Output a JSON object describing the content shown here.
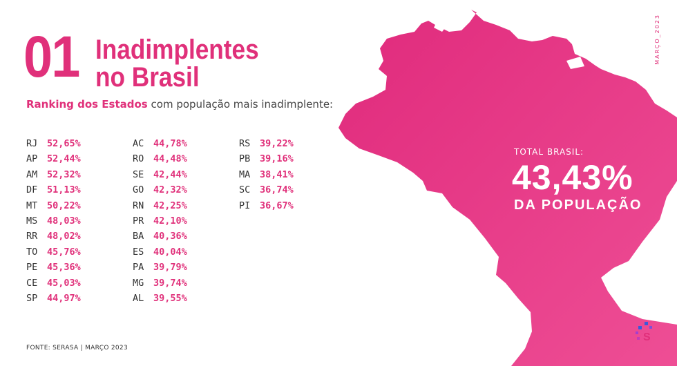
{
  "header": {
    "number": "01",
    "title_line1": "Inadimplentes",
    "title_line2": "no Brasil",
    "subtitle_bold": "Ranking dos Estados",
    "subtitle_rest": " com população mais inadimplente:",
    "date_vertical": "MARÇO_2023"
  },
  "ranking": {
    "col1": [
      {
        "state": "RJ",
        "pct": "52,65%"
      },
      {
        "state": "AP",
        "pct": "52,44%"
      },
      {
        "state": "AM",
        "pct": "52,32%"
      },
      {
        "state": "DF",
        "pct": "51,13%"
      },
      {
        "state": "MT",
        "pct": "50,22%"
      },
      {
        "state": "MS",
        "pct": "48,03%"
      },
      {
        "state": "RR",
        "pct": "48,02%"
      },
      {
        "state": "TO",
        "pct": "45,76%"
      },
      {
        "state": "PE",
        "pct": "45,36%"
      },
      {
        "state": "CE",
        "pct": "45,03%"
      },
      {
        "state": "SP",
        "pct": "44,97%"
      }
    ],
    "col2": [
      {
        "state": "AC",
        "pct": "44,78%"
      },
      {
        "state": "RO",
        "pct": "44,48%"
      },
      {
        "state": "SE",
        "pct": "42,44%"
      },
      {
        "state": "GO",
        "pct": "42,32%"
      },
      {
        "state": "RN",
        "pct": "42,25%"
      },
      {
        "state": "PR",
        "pct": "42,10%"
      },
      {
        "state": "BA",
        "pct": "40,36%"
      },
      {
        "state": "ES",
        "pct": "40,04%"
      },
      {
        "state": "PA",
        "pct": "39,79%"
      },
      {
        "state": "MG",
        "pct": "39,74%"
      },
      {
        "state": "AL",
        "pct": "39,55%"
      }
    ],
    "col3": [
      {
        "state": "RS",
        "pct": "39,22%"
      },
      {
        "state": "PB",
        "pct": "39,16%"
      },
      {
        "state": "MA",
        "pct": "38,41%"
      },
      {
        "state": "SC",
        "pct": "36,74%"
      },
      {
        "state": "PI",
        "pct": "36,67%"
      }
    ]
  },
  "total": {
    "label": "TOTAL BRASIL:",
    "value": "43,43%",
    "sub": "DA POPULAÇÃO"
  },
  "footer": {
    "source": "FONTE: SERASA |  MARÇO 2023"
  },
  "colors": {
    "accent": "#e0307a",
    "map": "#e63a86"
  },
  "icons": {
    "logo": "serasa-logo-icon",
    "map": "brazil-map"
  }
}
